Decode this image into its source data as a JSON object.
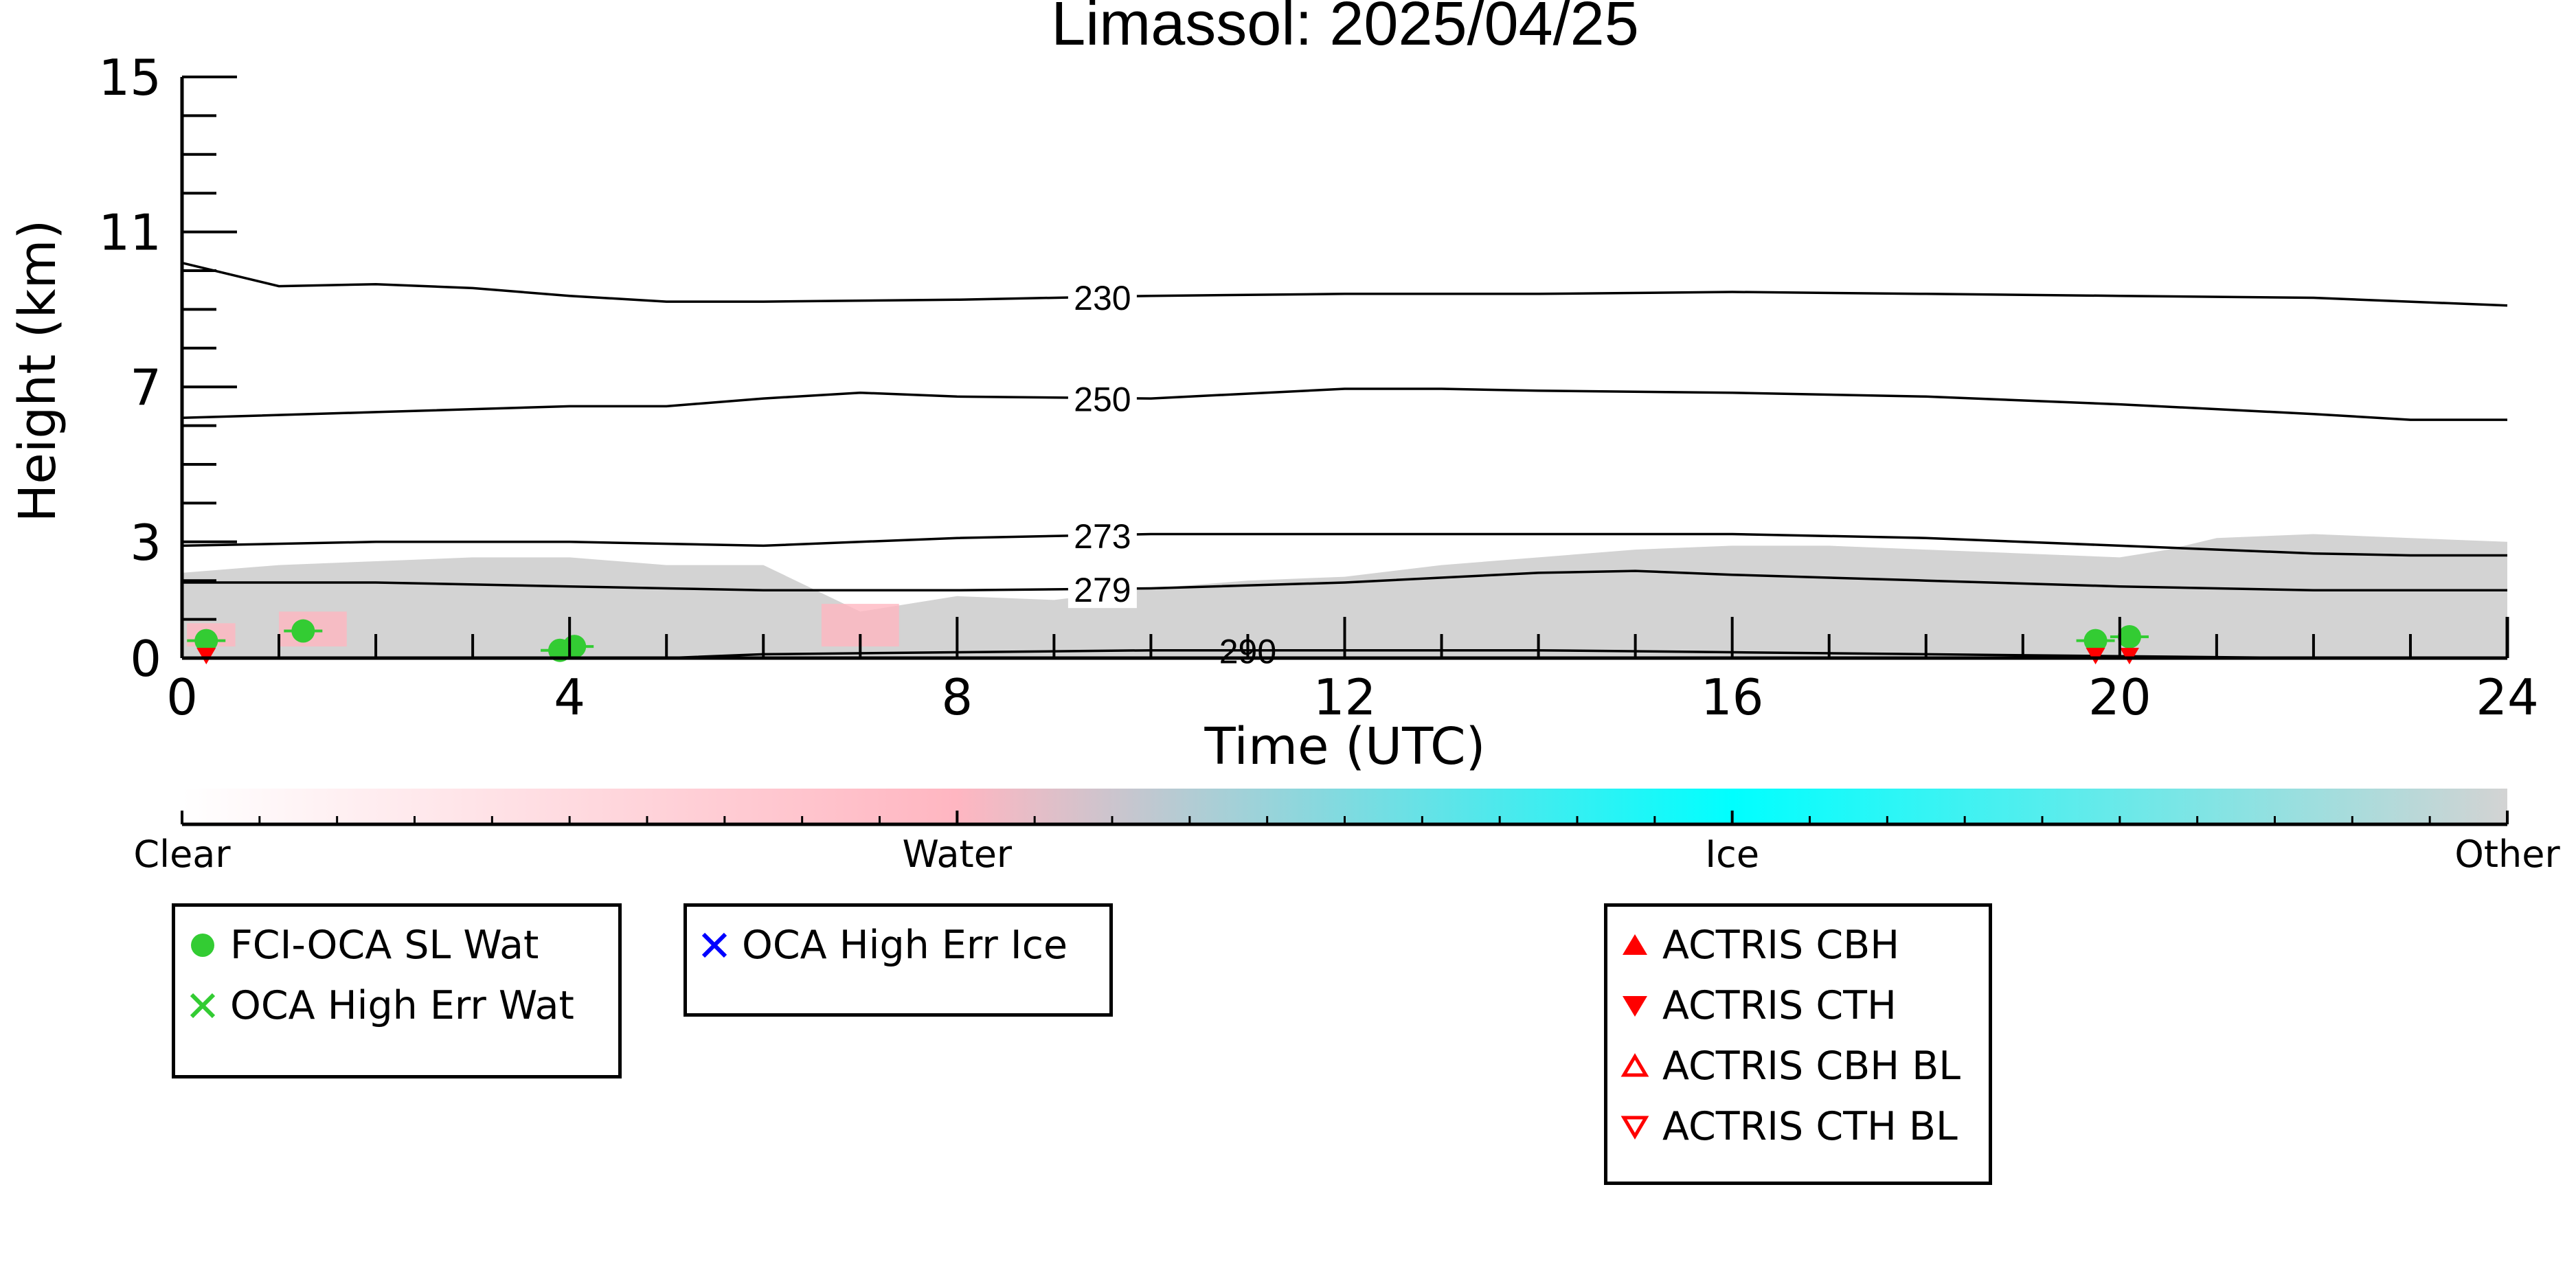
{
  "chart_data": {
    "type": "line",
    "title": "Limassol: 2025/04/25",
    "xlabel": "Time (UTC)",
    "ylabel": "Height (km)",
    "xlim": [
      0,
      24
    ],
    "ylim": [
      0,
      15
    ],
    "x_ticks": [
      "0",
      "4",
      "8",
      "12",
      "16",
      "20",
      "24"
    ],
    "y_ticks": [
      "0",
      "3",
      "7",
      "11",
      "15"
    ],
    "contours": [
      {
        "name": "230",
        "x": [
          0,
          1,
          2,
          3,
          4,
          5,
          6,
          8,
          10,
          12,
          14,
          16,
          18,
          20,
          22,
          24
        ],
        "y": [
          10.2,
          9.6,
          9.65,
          9.55,
          9.35,
          9.2,
          9.2,
          9.25,
          9.35,
          9.4,
          9.4,
          9.45,
          9.4,
          9.35,
          9.3,
          9.1
        ]
      },
      {
        "name": "250",
        "x": [
          0,
          2,
          4,
          5,
          6,
          7,
          8,
          10,
          12,
          13,
          14,
          16,
          18,
          20,
          22,
          23,
          24
        ],
        "y": [
          6.2,
          6.35,
          6.5,
          6.5,
          6.7,
          6.85,
          6.75,
          6.7,
          6.95,
          6.95,
          6.9,
          6.85,
          6.75,
          6.55,
          6.3,
          6.15,
          6.15
        ]
      },
      {
        "name": "273",
        "x": [
          0,
          2,
          4,
          6,
          8,
          10,
          12,
          14,
          16,
          18,
          20,
          22,
          23,
          24
        ],
        "y": [
          2.9,
          3.0,
          3.0,
          2.9,
          3.1,
          3.2,
          3.2,
          3.2,
          3.2,
          3.1,
          2.9,
          2.7,
          2.65,
          2.65
        ]
      },
      {
        "name": "279",
        "x": [
          0,
          2,
          4,
          5,
          6,
          8,
          10,
          12,
          14,
          15,
          16,
          18,
          20,
          22,
          24
        ],
        "y": [
          1.95,
          1.95,
          1.85,
          1.8,
          1.75,
          1.75,
          1.8,
          1.95,
          2.2,
          2.25,
          2.15,
          2.0,
          1.85,
          1.75,
          1.75
        ]
      },
      {
        "name": "290",
        "x": [
          0,
          5,
          6,
          8,
          10,
          12,
          14,
          16,
          18,
          20,
          22,
          24
        ],
        "y": [
          0,
          0,
          0.1,
          0.15,
          0.2,
          0.2,
          0.2,
          0.15,
          0.1,
          0.05,
          0,
          0
        ]
      }
    ],
    "cloud_mask_top_km": {
      "x": [
        0,
        1,
        2,
        3,
        4,
        5,
        6,
        7,
        8,
        9,
        10,
        11,
        12,
        13,
        14,
        15,
        16,
        17,
        18,
        19,
        20,
        20.5,
        21,
        22,
        23,
        24
      ],
      "y": [
        2.2,
        2.4,
        2.5,
        2.6,
        2.6,
        2.4,
        2.4,
        1.2,
        1.6,
        1.5,
        1.8,
        2.0,
        2.1,
        2.4,
        2.6,
        2.8,
        2.9,
        2.9,
        2.8,
        2.7,
        2.6,
        2.8,
        3.1,
        3.2,
        3.1,
        3.0
      ]
    },
    "colorbar": {
      "labels": [
        "Clear",
        "Water",
        "Ice",
        "Other"
      ],
      "colors": [
        "#ffffff",
        "#ffb6c1",
        "#00ffff",
        "#d3d3d3"
      ]
    },
    "series": [
      {
        "name": "FCI-OCA SL Wat",
        "color": "#33cc33",
        "marker": "circle",
        "x": [
          0.25,
          1.25,
          3.9,
          4.05,
          19.75,
          20.1
        ],
        "y": [
          0.45,
          0.7,
          0.2,
          0.3,
          0.45,
          0.55
        ]
      },
      {
        "name": "OCA High Err Wat",
        "color": "#33cc33",
        "marker": "x",
        "x": [],
        "y": []
      },
      {
        "name": "OCA High Err Ice",
        "color": "#0000ff",
        "marker": "x",
        "x": [],
        "y": []
      },
      {
        "name": "ACTRIS CBH",
        "color": "#ff0000",
        "marker": "triangle-up",
        "x": [],
        "y": []
      },
      {
        "name": "ACTRIS CTH",
        "color": "#ff0000",
        "marker": "triangle-down",
        "x": [
          0.25,
          19.75,
          20.1
        ],
        "y": [
          0.05,
          0.05,
          0.05
        ]
      },
      {
        "name": "ACTRIS CBH BL",
        "color": "#ff0000",
        "marker": "triangle-up-open",
        "x": [],
        "y": []
      },
      {
        "name": "ACTRIS CTH BL",
        "color": "#ff0000",
        "marker": "triangle-down-open",
        "x": [],
        "y": []
      }
    ]
  },
  "legend_groups": [
    [
      "FCI-OCA SL Wat",
      "OCA High Err Wat"
    ],
    [
      "OCA High Err Ice"
    ],
    [
      "ACTRIS CBH",
      "ACTRIS CTH",
      "ACTRIS CBH BL",
      "ACTRIS CTH BL"
    ]
  ]
}
